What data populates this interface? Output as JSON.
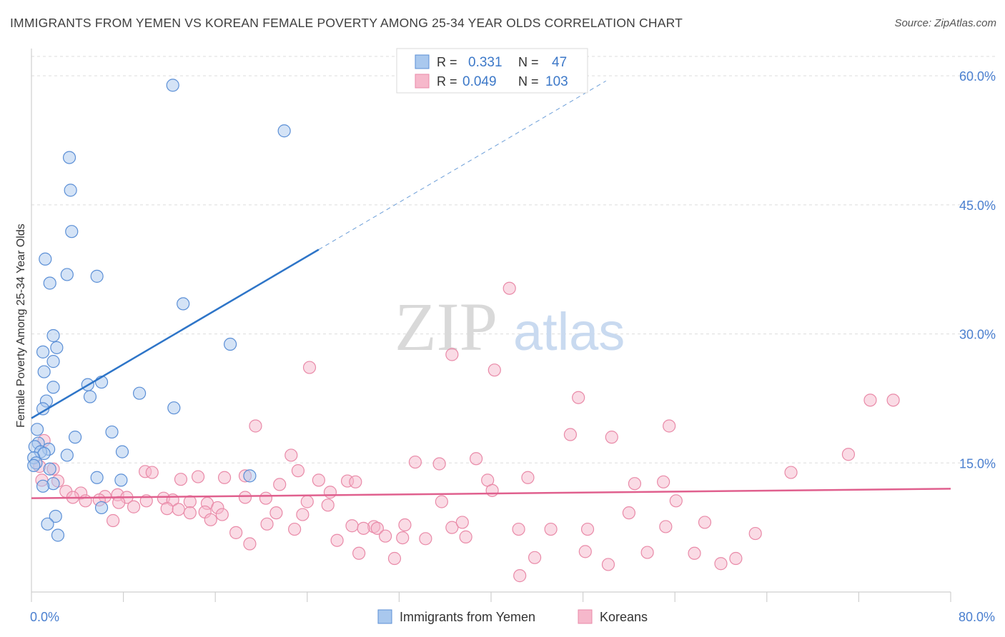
{
  "title": "IMMIGRANTS FROM YEMEN VS KOREAN FEMALE POVERTY AMONG 25-34 YEAR OLDS CORRELATION CHART",
  "source": "Source: ZipAtlas.com",
  "watermark": {
    "zip": "ZIP",
    "atlas": "atlas"
  },
  "colors": {
    "blue_fill": "#a9c8ee",
    "blue_stroke": "#5b8fd6",
    "blue_line": "#2e75c8",
    "pink_fill": "#f6b8cb",
    "pink_stroke": "#e98aa8",
    "pink_line": "#e0608e",
    "tick_label": "#4a7fcf",
    "grid": "#dddddd"
  },
  "legend_top": {
    "rows": [
      {
        "r_label": "R = ",
        "r_value": "0.331",
        "n_label": "N = ",
        "n_value": "47"
      },
      {
        "r_label": "R = ",
        "r_value": "0.049",
        "n_label": "N = ",
        "n_value": "103"
      }
    ]
  },
  "chart_data": {
    "type": "scatter",
    "title": "IMMIGRANTS FROM YEMEN VS KOREAN FEMALE POVERTY AMONG 25-34 YEAR OLDS CORRELATION CHART",
    "xlabel": "",
    "ylabel": "Female Poverty Among 25-34 Year Olds",
    "xlim": [
      0,
      80
    ],
    "ylim": [
      0,
      63
    ],
    "x_tick_labels": [
      "0.0%",
      "80.0%"
    ],
    "y_ticks": [
      15,
      30,
      45,
      60
    ],
    "y_tick_labels": [
      "15.0%",
      "30.0%",
      "45.0%",
      "60.0%"
    ],
    "grid": true,
    "legend_position": "bottom-center",
    "series": [
      {
        "name": "Immigrants from Yemen",
        "color": "#5b8fd6",
        "trend": {
          "x": [
            0,
            25
          ],
          "y": [
            20.2,
            39.8
          ],
          "dashed_to": [
            50,
            59.4
          ]
        },
        "points": [
          [
            12.3,
            58.9
          ],
          [
            22.0,
            53.6
          ],
          [
            3.3,
            50.5
          ],
          [
            3.4,
            46.7
          ],
          [
            3.5,
            41.9
          ],
          [
            1.2,
            38.7
          ],
          [
            3.1,
            36.9
          ],
          [
            5.7,
            36.7
          ],
          [
            1.6,
            35.9
          ],
          [
            13.2,
            33.5
          ],
          [
            1.9,
            29.8
          ],
          [
            17.3,
            28.8
          ],
          [
            1.0,
            27.9
          ],
          [
            2.2,
            28.4
          ],
          [
            1.9,
            26.8
          ],
          [
            1.1,
            25.6
          ],
          [
            1.9,
            23.8
          ],
          [
            4.9,
            24.1
          ],
          [
            6.1,
            24.4
          ],
          [
            9.4,
            23.1
          ],
          [
            5.1,
            22.7
          ],
          [
            1.3,
            22.2
          ],
          [
            1.0,
            21.3
          ],
          [
            12.4,
            21.4
          ],
          [
            0.5,
            18.9
          ],
          [
            7.0,
            18.6
          ],
          [
            3.8,
            18.0
          ],
          [
            0.6,
            17.3
          ],
          [
            0.3,
            16.9
          ],
          [
            1.5,
            16.6
          ],
          [
            0.8,
            16.3
          ],
          [
            7.9,
            16.3
          ],
          [
            1.1,
            16.1
          ],
          [
            3.1,
            15.9
          ],
          [
            0.2,
            15.6
          ],
          [
            0.4,
            15.0
          ],
          [
            0.2,
            14.7
          ],
          [
            1.6,
            14.3
          ],
          [
            5.7,
            13.3
          ],
          [
            19.0,
            13.5
          ],
          [
            7.8,
            13.0
          ],
          [
            1.9,
            12.6
          ],
          [
            1.0,
            12.3
          ],
          [
            6.1,
            9.8
          ],
          [
            2.1,
            8.8
          ],
          [
            1.4,
            7.9
          ],
          [
            2.3,
            6.6
          ]
        ]
      },
      {
        "name": "Koreans",
        "color": "#e98aa8",
        "trend": {
          "x": [
            0,
            80
          ],
          "y": [
            10.9,
            12.0
          ]
        },
        "points": [
          [
            41.6,
            35.3
          ],
          [
            36.6,
            27.6
          ],
          [
            24.2,
            26.1
          ],
          [
            40.3,
            25.8
          ],
          [
            47.6,
            22.6
          ],
          [
            73.0,
            22.3
          ],
          [
            75.0,
            22.3
          ],
          [
            19.5,
            19.3
          ],
          [
            55.5,
            19.3
          ],
          [
            46.9,
            18.3
          ],
          [
            50.5,
            18.0
          ],
          [
            1.1,
            17.6
          ],
          [
            22.6,
            15.9
          ],
          [
            71.1,
            16.0
          ],
          [
            38.7,
            15.5
          ],
          [
            33.4,
            15.1
          ],
          [
            35.5,
            14.9
          ],
          [
            0.7,
            14.6
          ],
          [
            1.9,
            14.3
          ],
          [
            9.9,
            14.0
          ],
          [
            10.5,
            13.9
          ],
          [
            23.2,
            14.1
          ],
          [
            66.1,
            13.9
          ],
          [
            14.5,
            13.4
          ],
          [
            16.8,
            13.3
          ],
          [
            18.6,
            13.5
          ],
          [
            43.2,
            13.3
          ],
          [
            0.9,
            13.0
          ],
          [
            2.3,
            12.9
          ],
          [
            13.0,
            13.1
          ],
          [
            25.0,
            13.0
          ],
          [
            27.5,
            12.9
          ],
          [
            28.2,
            12.8
          ],
          [
            39.7,
            13.0
          ],
          [
            52.5,
            12.6
          ],
          [
            55.0,
            12.8
          ],
          [
            21.6,
            12.5
          ],
          [
            3.0,
            11.7
          ],
          [
            4.3,
            11.5
          ],
          [
            26.0,
            11.6
          ],
          [
            40.1,
            11.8
          ],
          [
            3.6,
            11.0
          ],
          [
            6.4,
            11.1
          ],
          [
            7.5,
            11.3
          ],
          [
            10.0,
            10.6
          ],
          [
            11.5,
            10.9
          ],
          [
            12.3,
            10.7
          ],
          [
            18.6,
            11.0
          ],
          [
            20.4,
            10.9
          ],
          [
            4.7,
            10.6
          ],
          [
            5.9,
            10.7
          ],
          [
            8.3,
            11.0
          ],
          [
            13.8,
            10.5
          ],
          [
            7.6,
            10.4
          ],
          [
            15.3,
            10.3
          ],
          [
            24.0,
            10.5
          ],
          [
            35.7,
            10.5
          ],
          [
            56.1,
            10.6
          ],
          [
            8.9,
            9.9
          ],
          [
            11.8,
            9.7
          ],
          [
            12.8,
            9.6
          ],
          [
            13.8,
            9.2
          ],
          [
            15.1,
            9.3
          ],
          [
            16.2,
            9.8
          ],
          [
            16.6,
            9.0
          ],
          [
            21.3,
            9.2
          ],
          [
            23.6,
            9.0
          ],
          [
            25.8,
            10.1
          ],
          [
            52.0,
            9.2
          ],
          [
            7.1,
            8.3
          ],
          [
            15.6,
            8.4
          ],
          [
            20.5,
            7.9
          ],
          [
            22.9,
            7.3
          ],
          [
            27.9,
            7.7
          ],
          [
            29.8,
            7.6
          ],
          [
            32.5,
            7.8
          ],
          [
            42.4,
            7.3
          ],
          [
            45.2,
            7.3
          ],
          [
            55.2,
            7.6
          ],
          [
            58.6,
            8.1
          ],
          [
            17.8,
            6.9
          ],
          [
            30.1,
            7.4
          ],
          [
            30.8,
            6.5
          ],
          [
            32.3,
            6.3
          ],
          [
            37.8,
            6.4
          ],
          [
            63.0,
            6.8
          ],
          [
            26.6,
            6.0
          ],
          [
            19.0,
            5.6
          ],
          [
            28.5,
            4.5
          ],
          [
            31.6,
            3.9
          ],
          [
            34.3,
            6.2
          ],
          [
            36.6,
            7.5
          ],
          [
            37.5,
            8.1
          ],
          [
            48.4,
            7.3
          ],
          [
            48.2,
            4.7
          ],
          [
            53.6,
            4.6
          ],
          [
            57.7,
            4.5
          ],
          [
            61.3,
            3.9
          ],
          [
            43.8,
            4.0
          ],
          [
            50.2,
            3.2
          ],
          [
            60.0,
            3.3
          ],
          [
            42.5,
            1.9
          ],
          [
            28.9,
            7.4
          ]
        ]
      }
    ]
  }
}
